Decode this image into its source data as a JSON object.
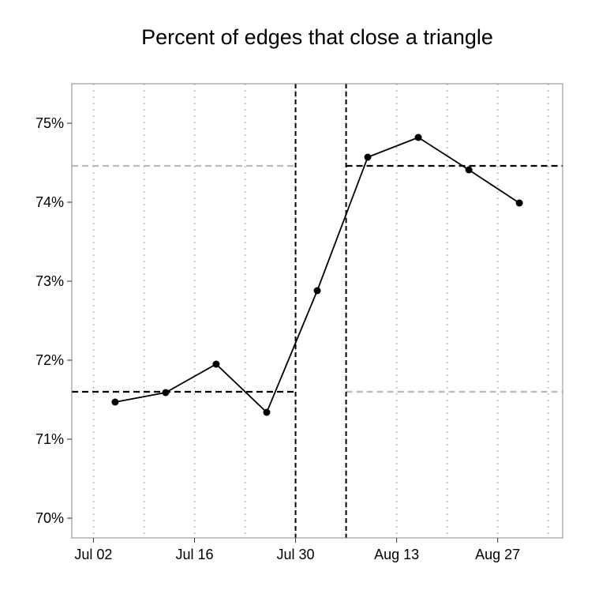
{
  "chart_data": {
    "type": "line",
    "title": "Percent of edges that close a triangle",
    "xlabel": "",
    "ylabel": "",
    "x_type": "date",
    "xlim": [
      "2015-06-29",
      "2015-09-05"
    ],
    "ylim": [
      69.75,
      75.5
    ],
    "x_ticks": [
      {
        "date": "2015-07-02",
        "label": "Jul 02"
      },
      {
        "date": "2015-07-16",
        "label": "Jul 16"
      },
      {
        "date": "2015-07-30",
        "label": "Jul 30"
      },
      {
        "date": "2015-08-13",
        "label": "Aug 13"
      },
      {
        "date": "2015-08-27",
        "label": "Aug 27"
      }
    ],
    "x_minor_ticks": [
      "2015-07-09",
      "2015-07-23",
      "2015-08-06",
      "2015-08-20",
      "2015-09-03"
    ],
    "y_ticks": [
      {
        "value": 70,
        "label": "70%"
      },
      {
        "value": 71,
        "label": "71%"
      },
      {
        "value": 72,
        "label": "72%"
      },
      {
        "value": 73,
        "label": "73%"
      },
      {
        "value": 74,
        "label": "74%"
      },
      {
        "value": 75,
        "label": "75%"
      }
    ],
    "grid": "vertical dotted",
    "series": [
      {
        "points": [
          {
            "x": "2015-07-05",
            "y": 71.47
          },
          {
            "x": "2015-07-12",
            "y": 71.59
          },
          {
            "x": "2015-07-19",
            "y": 71.95
          },
          {
            "x": "2015-07-26",
            "y": 71.34
          },
          {
            "x": "2015-08-02",
            "y": 72.88
          },
          {
            "x": "2015-08-09",
            "y": 74.57
          },
          {
            "x": "2015-08-16",
            "y": 74.82
          },
          {
            "x": "2015-08-23",
            "y": 74.41
          },
          {
            "x": "2015-08-30",
            "y": 73.99
          }
        ]
      }
    ],
    "vertical_lines": [
      {
        "x": "2015-07-30",
        "style": "dashed"
      },
      {
        "x": "2015-08-06",
        "style": "dashed"
      }
    ],
    "horizontal_segments": [
      {
        "y": 71.6,
        "from": "2015-06-29",
        "to": "2015-07-30",
        "color": "#000000"
      },
      {
        "y": 74.46,
        "from": "2015-06-29",
        "to": "2015-07-30",
        "color": "#bbbbbb"
      },
      {
        "y": 74.46,
        "from": "2015-08-06",
        "to": "2015-09-05",
        "color": "#000000"
      },
      {
        "y": 71.6,
        "from": "2015-08-06",
        "to": "2015-09-05",
        "color": "#bbbbbb"
      }
    ],
    "colors": {
      "line": "#000000",
      "grid": "#bbbbbb",
      "frame": "#888888"
    }
  }
}
